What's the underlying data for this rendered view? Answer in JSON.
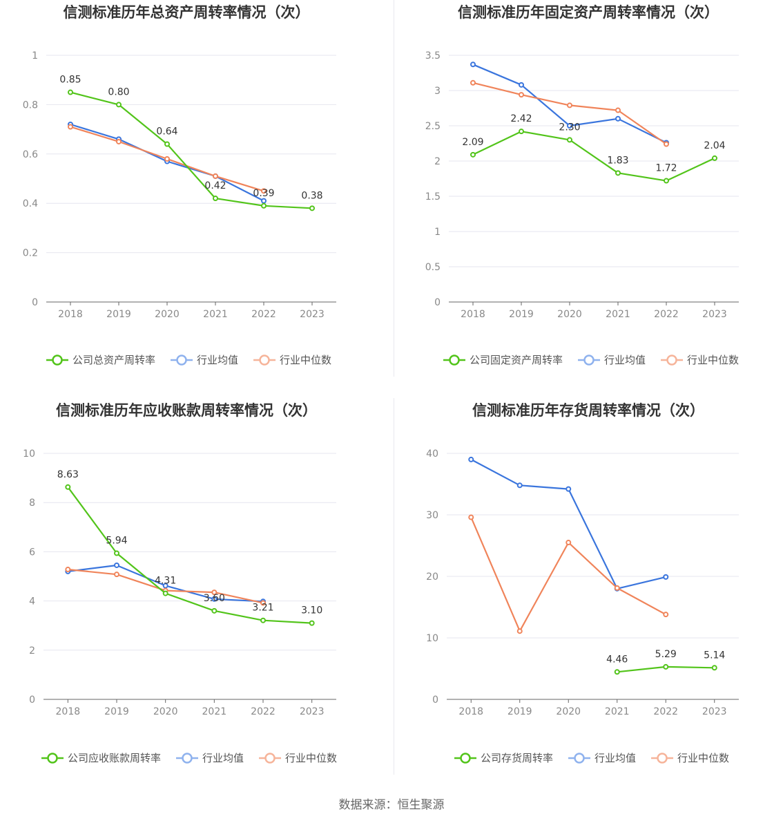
{
  "source_text": "数据来源：恒生聚源",
  "colors": {
    "company": "#52c41a",
    "avg": "#3a75dd",
    "median": "#f0845a",
    "legend_avg": "#8fb2ee",
    "legend_median": "#f6b49a"
  },
  "chart_data": [
    {
      "type": "line",
      "title": "信测标准历年总资产周转率情况（次）",
      "x": [
        "2018",
        "2019",
        "2020",
        "2021",
        "2022",
        "2023"
      ],
      "ylim": [
        0,
        1
      ],
      "yticks": [
        "0",
        "0.2",
        "0.4",
        "0.6",
        "0.8",
        "1"
      ],
      "ytick_values": [
        0,
        0.2,
        0.4,
        0.6,
        0.8,
        1
      ],
      "series": [
        {
          "name": "公司总资产周转率",
          "values": [
            0.85,
            0.8,
            0.64,
            0.42,
            0.39,
            0.38
          ],
          "labels": [
            "0.85",
            "0.80",
            "0.64",
            "0.42",
            "0.39",
            "0.38"
          ]
        },
        {
          "name": "行业均值",
          "values": [
            0.72,
            0.66,
            0.57,
            0.51,
            0.41,
            null
          ]
        },
        {
          "name": "行业中位数",
          "values": [
            0.71,
            0.65,
            0.58,
            0.51,
            0.45,
            null
          ]
        }
      ]
    },
    {
      "type": "line",
      "title": "信测标准历年固定资产周转率情况（次）",
      "x": [
        "2018",
        "2019",
        "2020",
        "2021",
        "2022",
        "2023"
      ],
      "ylim": [
        0,
        3.5
      ],
      "yticks": [
        "0",
        "0.5",
        "1",
        "1.5",
        "2",
        "2.5",
        "3",
        "3.5"
      ],
      "ytick_values": [
        0,
        0.5,
        1,
        1.5,
        2,
        2.5,
        3,
        3.5
      ],
      "series": [
        {
          "name": "公司固定资产周转率",
          "values": [
            2.09,
            2.42,
            2.3,
            1.83,
            1.72,
            2.04
          ],
          "labels": [
            "2.09",
            "2.42",
            "2.30",
            "1.83",
            "1.72",
            "2.04"
          ]
        },
        {
          "name": "行业均值",
          "values": [
            3.37,
            3.08,
            2.5,
            2.6,
            2.26,
            null
          ]
        },
        {
          "name": "行业中位数",
          "values": [
            3.11,
            2.94,
            2.79,
            2.72,
            2.24,
            null
          ]
        }
      ]
    },
    {
      "type": "line",
      "title": "信测标准历年应收账款周转率情况（次）",
      "x": [
        "2018",
        "2019",
        "2020",
        "2021",
        "2022",
        "2023"
      ],
      "ylim": [
        0,
        10
      ],
      "yticks": [
        "0",
        "2",
        "4",
        "6",
        "8",
        "10"
      ],
      "ytick_values": [
        0,
        2,
        4,
        6,
        8,
        10
      ],
      "series": [
        {
          "name": "公司应收账款周转率",
          "values": [
            8.63,
            5.94,
            4.31,
            3.6,
            3.21,
            3.1
          ],
          "labels": [
            "8.63",
            "5.94",
            "4.31",
            "3.60",
            "3.21",
            "3.10"
          ]
        },
        {
          "name": "行业均值",
          "values": [
            5.2,
            5.45,
            4.62,
            4.08,
            3.98,
            null
          ]
        },
        {
          "name": "行业中位数",
          "values": [
            5.28,
            5.08,
            4.42,
            4.35,
            3.92,
            null
          ]
        }
      ]
    },
    {
      "type": "line",
      "title": "信测标准历年存货周转率情况（次）",
      "x": [
        "2018",
        "2019",
        "2020",
        "2021",
        "2022",
        "2023"
      ],
      "ylim": [
        0,
        40
      ],
      "yticks": [
        "0",
        "10",
        "20",
        "30",
        "40"
      ],
      "ytick_values": [
        0,
        10,
        20,
        30,
        40
      ],
      "series": [
        {
          "name": "公司存货周转率",
          "values": [
            null,
            null,
            null,
            4.46,
            5.29,
            5.14
          ],
          "labels": [
            null,
            null,
            null,
            "4.46",
            "5.29",
            "5.14"
          ]
        },
        {
          "name": "行业均值",
          "values": [
            39.0,
            34.8,
            34.2,
            18.0,
            19.9,
            null
          ]
        },
        {
          "name": "行业中位数",
          "values": [
            29.6,
            11.1,
            25.5,
            18.1,
            13.8,
            null
          ]
        }
      ]
    }
  ]
}
